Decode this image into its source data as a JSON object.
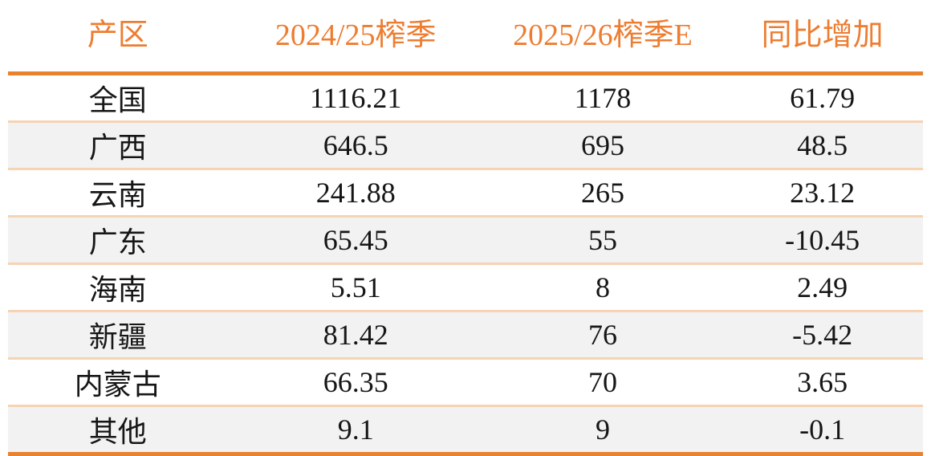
{
  "table": {
    "headers": [
      "产区",
      "2024/25榨季",
      "2025/26榨季E",
      "同比增加"
    ],
    "rows": [
      [
        "全国",
        "1116.21",
        "1178",
        "61.79"
      ],
      [
        "广西",
        "646.5",
        "695",
        "48.5"
      ],
      [
        "云南",
        "241.88",
        "265",
        "23.12"
      ],
      [
        "广东",
        "65.45",
        "55",
        "-10.45"
      ],
      [
        "海南",
        "5.51",
        "8",
        "2.49"
      ],
      [
        "新疆",
        "81.42",
        "76",
        "-5.42"
      ],
      [
        "内蒙古",
        "66.35",
        "70",
        "3.65"
      ],
      [
        "其他",
        "9.1",
        "9",
        "-0.1"
      ]
    ]
  },
  "chart_data": {
    "type": "table",
    "columns": [
      "产区",
      "2024/25榨季",
      "2025/26榨季E",
      "同比增加"
    ],
    "rows": [
      [
        "全国",
        1116.21,
        1178,
        61.79
      ],
      [
        "广西",
        646.5,
        695,
        48.5
      ],
      [
        "云南",
        241.88,
        265,
        23.12
      ],
      [
        "广东",
        65.45,
        55,
        -10.45
      ],
      [
        "海南",
        5.51,
        8,
        2.49
      ],
      [
        "新疆",
        81.42,
        76,
        -5.42
      ],
      [
        "内蒙古",
        66.35,
        70,
        3.65
      ],
      [
        "其他",
        9.1,
        9,
        -0.1
      ]
    ]
  },
  "colors": {
    "header_text": "#ED7D31",
    "strong_rule": "#E8822E",
    "row_divider": "#F5D3B3",
    "stripe_background": "#F2F2F2",
    "value_text": "#161616"
  }
}
